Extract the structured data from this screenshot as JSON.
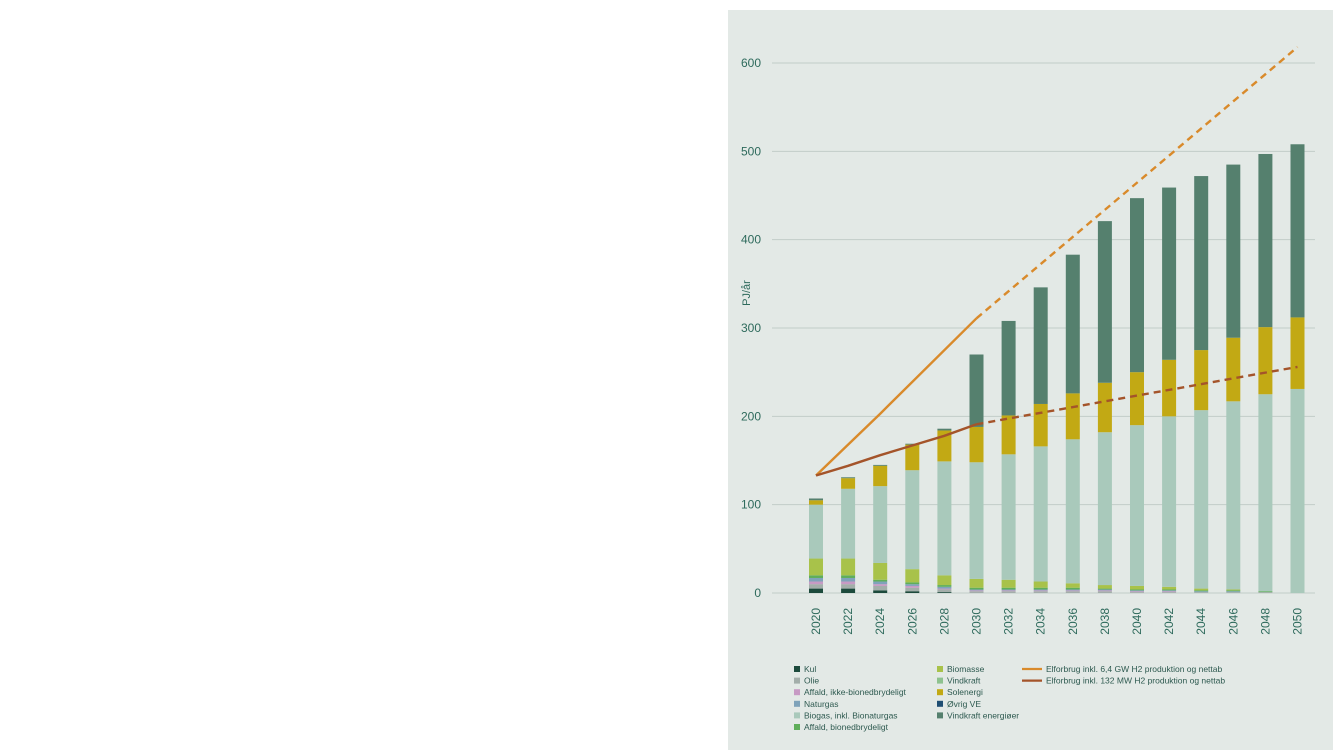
{
  "chart_data": {
    "type": "bar",
    "stacked": true,
    "ylabel": "PJ/år",
    "ylim": [
      0,
      650
    ],
    "yticks": [
      0,
      100,
      200,
      300,
      400,
      500,
      600
    ],
    "grid": true,
    "categories": [
      "2020",
      "2022",
      "2024",
      "2026",
      "2028",
      "2030",
      "2032",
      "2034",
      "2036",
      "2038",
      "2040",
      "2042",
      "2044",
      "2046",
      "2048",
      "2050"
    ],
    "series": [
      {
        "name": "Kul",
        "color": "#1c4a3c",
        "values": [
          5,
          5,
          3,
          2,
          1,
          0,
          0,
          0,
          0,
          0,
          0,
          0,
          0,
          0,
          0,
          0
        ]
      },
      {
        "name": "Olie",
        "color": "#a3aeaa",
        "values": [
          5,
          5,
          5,
          4,
          3,
          2,
          2,
          2,
          2,
          2,
          1,
          1,
          1,
          1,
          1,
          0
        ]
      },
      {
        "name": "Affald, ikke-bionedbrydeligt",
        "color": "#c79ac4",
        "values": [
          3,
          3,
          2,
          2,
          1,
          1,
          1,
          1,
          1,
          1,
          1,
          1,
          0,
          0,
          0,
          0
        ]
      },
      {
        "name": "Naturgas",
        "color": "#7fa3ba",
        "values": [
          4,
          4,
          3,
          2,
          2,
          1,
          1,
          1,
          1,
          1,
          1,
          1,
          1,
          1,
          0,
          0
        ]
      },
      {
        "name": "Affald, bionedbrydeligt",
        "color": "#5fae5a",
        "values": [
          3,
          3,
          2,
          2,
          2,
          2,
          2,
          2,
          2,
          1,
          1,
          1,
          1,
          1,
          1,
          0
        ]
      },
      {
        "name": "Vindkraft",
        "color": "#8ec28f",
        "values": [
          0,
          0,
          0,
          0,
          0,
          0,
          0,
          0,
          0,
          0,
          0,
          0,
          0,
          0,
          0,
          0
        ]
      },
      {
        "name": "Biomasse",
        "color": "#a8c24a",
        "values": [
          19,
          19,
          19,
          15,
          11,
          10,
          9,
          7,
          5,
          4,
          4,
          3,
          2,
          1,
          0,
          0
        ]
      },
      {
        "name": "Biogas, inkl. Bionaturgas",
        "color": "#a9c9bb",
        "values": [
          61,
          79,
          87,
          112,
          129,
          132,
          142,
          153,
          163,
          173,
          182,
          193,
          202,
          213,
          223,
          231
        ]
      },
      {
        "name": "Øvrig VE",
        "color": "#1f4e73",
        "values": [
          0,
          0,
          0,
          0,
          0,
          0,
          0,
          0,
          0,
          0,
          0,
          0,
          0,
          0,
          0,
          0
        ]
      },
      {
        "name": "Solenergi",
        "color": "#c2a914",
        "values": [
          5,
          12,
          23,
          29,
          35,
          40,
          44,
          48,
          52,
          56,
          60,
          64,
          68,
          72,
          76,
          81
        ]
      },
      {
        "name": "Vindkraft energiøer",
        "color": "#55806e",
        "values": [
          2,
          1,
          1,
          1,
          2,
          82,
          107,
          132,
          157,
          183,
          197,
          195,
          197,
          196,
          196,
          196
        ]
      }
    ],
    "lines": [
      {
        "name": "Elforbrug inkl. 6,4 GW H2 produktion og nettab",
        "color": "#d98a2b",
        "x": [
          "2020",
          "2024",
          "2030",
          "2050"
        ],
        "values": [
          133,
          203,
          311,
          618
        ],
        "dashed_from": "2030"
      },
      {
        "name": "Elforbrug inkl. 132 MW H2 produktion og nettab",
        "color": "#a4542a",
        "x": [
          "2020",
          "2022",
          "2024",
          "2026",
          "2028",
          "2030",
          "2050"
        ],
        "values": [
          133,
          144,
          156,
          167,
          178,
          191,
          256
        ],
        "dashed_from": "2030"
      }
    ],
    "legend_position": "bottom"
  }
}
